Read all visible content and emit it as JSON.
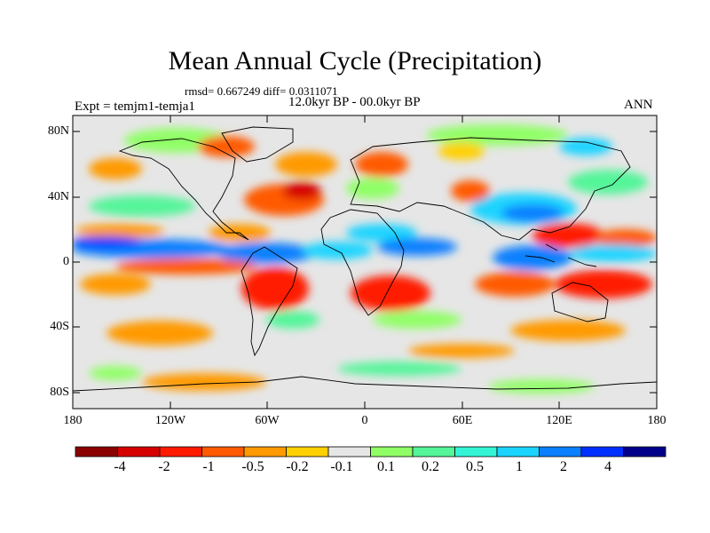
{
  "header": {
    "title": "Mean Annual Cycle (Precipitation)",
    "stats": "rmsd= 0.667249  diff= 0.0311071",
    "period": "12.0kyr BP - 00.0kyr BP",
    "expt": "Expt = temjm1-temja1",
    "season": "ANN"
  },
  "axes": {
    "y_ticks": [
      "80N",
      "40N",
      "0",
      "40S",
      "80S"
    ],
    "x_ticks": [
      "180",
      "120W",
      "60W",
      "0",
      "60E",
      "120E",
      "180"
    ]
  },
  "colorbar": {
    "colors": [
      "#8b0000",
      "#d60000",
      "#ff1a00",
      "#ff5a00",
      "#ff9a00",
      "#ffd000",
      "#e6e6e6",
      "#90ff66",
      "#55f59a",
      "#33f5d6",
      "#1ad4ff",
      "#0a80ff",
      "#0030ff",
      "#00008b"
    ],
    "labels": [
      "-4",
      "-2",
      "-1",
      "-0.5",
      "-0.2",
      "-0.1",
      "0.1",
      "0.2",
      "0.5",
      "1",
      "2",
      "4"
    ]
  },
  "map": {
    "background": "#e6e6e6",
    "coast_color": "#000000"
  }
}
